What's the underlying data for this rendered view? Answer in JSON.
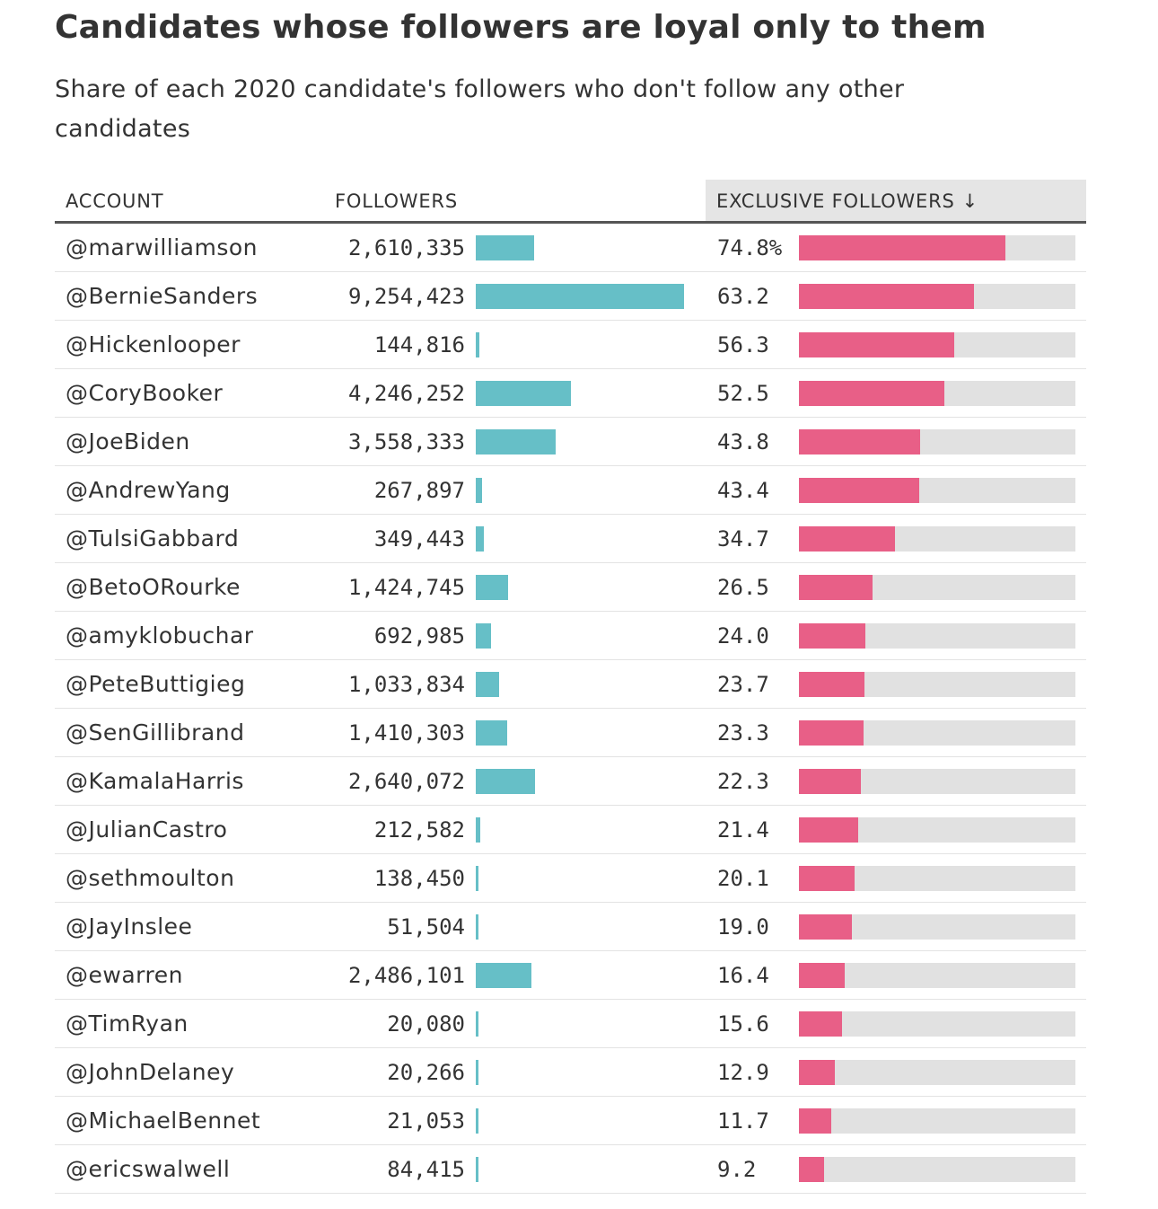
{
  "header": {
    "title": "Candidates whose followers are loyal only to them",
    "subtitle": "Share of each 2020 candidate's followers who don't follow any other candidates"
  },
  "columns": {
    "account": "ACCOUNT",
    "followers": "FOLLOWERS",
    "exclusive": "EXCLUSIVE FOLLOWERS",
    "sort_icon": "↓"
  },
  "colors": {
    "followers_bar": "#66bfc7",
    "exclusive_bar": "#e85f87",
    "track": "#e1e1e1"
  },
  "chart_data": {
    "type": "table",
    "sorted_by": "exclusive followers, descending",
    "followers_max": 9254423,
    "exclusive_max": 100,
    "rows": [
      {
        "account": "@marwilliamson",
        "followers": 2610335,
        "followers_label": "2,610,335",
        "exclusive": 74.8,
        "exclusive_label": "74.8%"
      },
      {
        "account": "@BernieSanders",
        "followers": 9254423,
        "followers_label": "9,254,423",
        "exclusive": 63.2,
        "exclusive_label": "63.2"
      },
      {
        "account": "@Hickenlooper",
        "followers": 144816,
        "followers_label": "144,816",
        "exclusive": 56.3,
        "exclusive_label": "56.3"
      },
      {
        "account": "@CoryBooker",
        "followers": 4246252,
        "followers_label": "4,246,252",
        "exclusive": 52.5,
        "exclusive_label": "52.5"
      },
      {
        "account": "@JoeBiden",
        "followers": 3558333,
        "followers_label": "3,558,333",
        "exclusive": 43.8,
        "exclusive_label": "43.8"
      },
      {
        "account": "@AndrewYang",
        "followers": 267897,
        "followers_label": "267,897",
        "exclusive": 43.4,
        "exclusive_label": "43.4"
      },
      {
        "account": "@TulsiGabbard",
        "followers": 349443,
        "followers_label": "349,443",
        "exclusive": 34.7,
        "exclusive_label": "34.7"
      },
      {
        "account": "@BetoORourke",
        "followers": 1424745,
        "followers_label": "1,424,745",
        "exclusive": 26.5,
        "exclusive_label": "26.5"
      },
      {
        "account": "@amyklobuchar",
        "followers": 692985,
        "followers_label": "692,985",
        "exclusive": 24.0,
        "exclusive_label": "24.0"
      },
      {
        "account": "@PeteButtigieg",
        "followers": 1033834,
        "followers_label": "1,033,834",
        "exclusive": 23.7,
        "exclusive_label": "23.7"
      },
      {
        "account": "@SenGillibrand",
        "followers": 1410303,
        "followers_label": "1,410,303",
        "exclusive": 23.3,
        "exclusive_label": "23.3"
      },
      {
        "account": "@KamalaHarris",
        "followers": 2640072,
        "followers_label": "2,640,072",
        "exclusive": 22.3,
        "exclusive_label": "22.3"
      },
      {
        "account": "@JulianCastro",
        "followers": 212582,
        "followers_label": "212,582",
        "exclusive": 21.4,
        "exclusive_label": "21.4"
      },
      {
        "account": "@sethmoulton",
        "followers": 138450,
        "followers_label": "138,450",
        "exclusive": 20.1,
        "exclusive_label": "20.1"
      },
      {
        "account": "@JayInslee",
        "followers": 51504,
        "followers_label": "51,504",
        "exclusive": 19.0,
        "exclusive_label": "19.0"
      },
      {
        "account": "@ewarren",
        "followers": 2486101,
        "followers_label": "2,486,101",
        "exclusive": 16.4,
        "exclusive_label": "16.4"
      },
      {
        "account": "@TimRyan",
        "followers": 20080,
        "followers_label": "20,080",
        "exclusive": 15.6,
        "exclusive_label": "15.6"
      },
      {
        "account": "@JohnDelaney",
        "followers": 20266,
        "followers_label": "20,266",
        "exclusive": 12.9,
        "exclusive_label": "12.9"
      },
      {
        "account": "@MichaelBennet",
        "followers": 21053,
        "followers_label": "21,053",
        "exclusive": 11.7,
        "exclusive_label": "11.7"
      },
      {
        "account": "@ericswalwell",
        "followers": 84415,
        "followers_label": "84,415",
        "exclusive": 9.2,
        "exclusive_label": "9.2"
      }
    ]
  }
}
